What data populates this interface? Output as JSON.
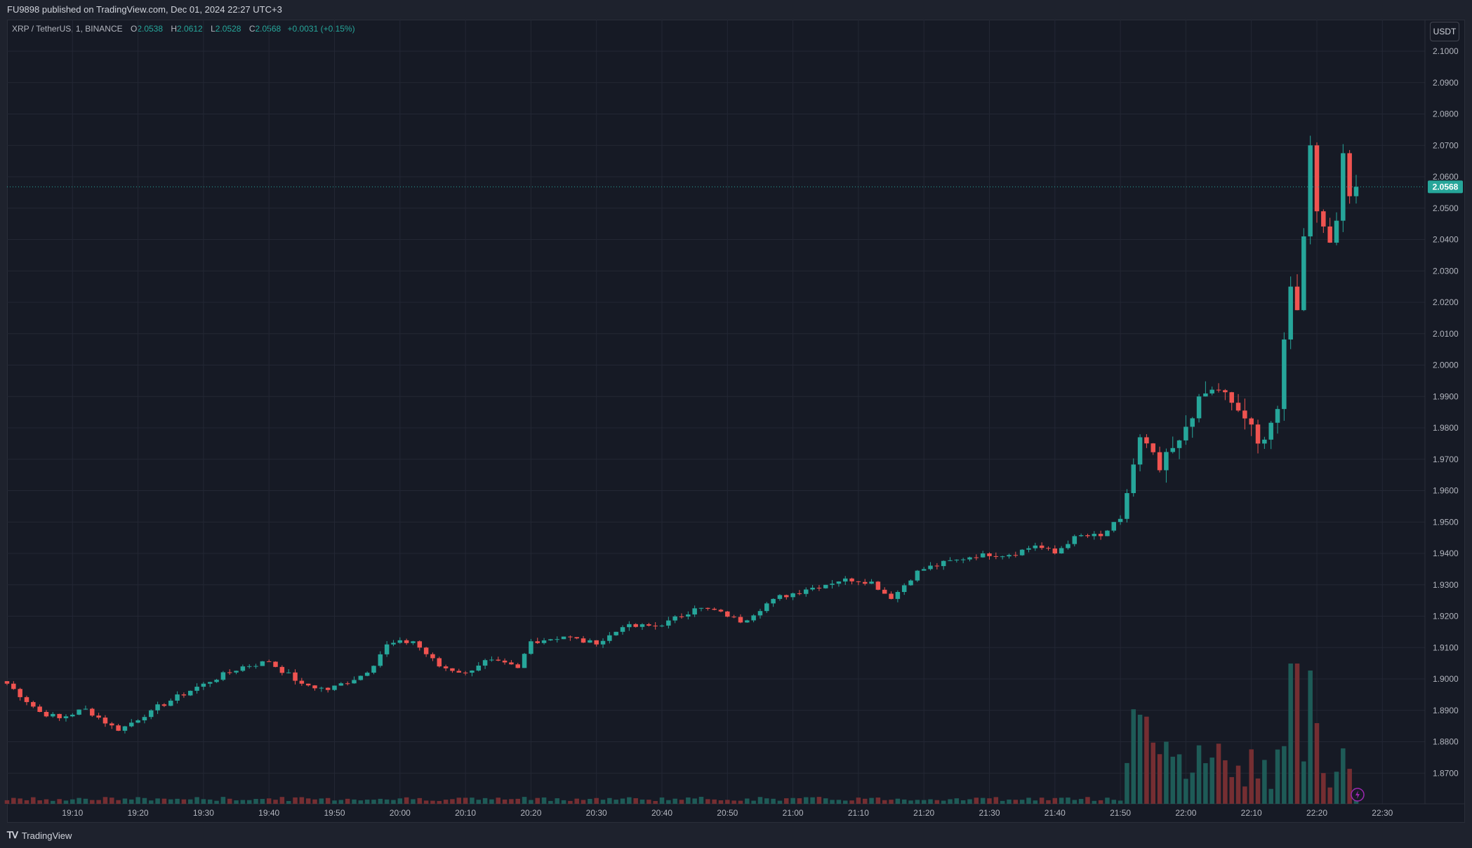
{
  "header": {
    "published_line": "FU9898 published on TradingView.com, Dec 01, 2024 22:27 UTC+3"
  },
  "legend": {
    "symbol": "XRP / TetherUS, 1, BINANCE",
    "open_label": "O",
    "open_value": "2.0538",
    "high_label": "H",
    "high_value": "2.0612",
    "low_label": "L",
    "low_value": "2.0528",
    "close_label": "C",
    "close_value": "2.0568",
    "change": "+0.0031 (+0.15%)"
  },
  "currency_button": "USDT",
  "footer": {
    "brand": "TradingView"
  },
  "colors": {
    "up": "#26a69a",
    "down": "#ef5350",
    "background": "#161a25",
    "grid": "#232734"
  },
  "chart_data": {
    "type": "candlestick",
    "instrument": "XRP / TetherUS",
    "interval_minutes": 1,
    "exchange": "BINANCE",
    "y_axis_labels": [
      "2.1000",
      "2.0900",
      "2.0800",
      "2.0700",
      "2.0600",
      "2.0500",
      "2.0400",
      "2.0300",
      "2.0200",
      "2.0100",
      "2.0000",
      "1.9900",
      "1.9800",
      "1.9700",
      "1.9600",
      "1.9500",
      "1.9400",
      "1.9300",
      "1.9200",
      "1.9100",
      "1.9000",
      "1.8900",
      "1.8800",
      "1.8700"
    ],
    "y_range": [
      1.862,
      2.104
    ],
    "x_axis_labels": [
      "19:10",
      "19:20",
      "19:30",
      "19:40",
      "19:50",
      "20:00",
      "20:10",
      "20:20",
      "20:30",
      "20:40",
      "20:50",
      "21:00",
      "21:10",
      "21:20",
      "21:30",
      "21:40",
      "21:50",
      "22:00",
      "22:10",
      "22:20",
      "22:30"
    ],
    "x_range_minutes": [
      "19:00",
      "22:35"
    ],
    "last_price": "2.0568",
    "close_path_anchors": [
      [
        "19:00",
        1.8985
      ],
      [
        "19:05",
        1.8895
      ],
      [
        "19:08",
        1.8875
      ],
      [
        "19:12",
        1.8905
      ],
      [
        "19:17",
        1.8835
      ],
      [
        "19:22",
        1.89
      ],
      [
        "19:30",
        1.8985
      ],
      [
        "19:36",
        1.904
      ],
      [
        "19:40",
        1.9055
      ],
      [
        "19:45",
        1.8985
      ],
      [
        "19:49",
        1.8965
      ],
      [
        "19:55",
        1.902
      ],
      [
        "19:58",
        1.911
      ],
      [
        "20:02",
        1.912
      ],
      [
        "20:06",
        1.904
      ],
      [
        "20:10",
        1.902
      ],
      [
        "20:13",
        1.906
      ],
      [
        "20:18",
        1.9035
      ],
      [
        "20:20",
        1.912
      ],
      [
        "20:25",
        1.9135
      ],
      [
        "20:30",
        1.911
      ],
      [
        "20:34",
        1.9165
      ],
      [
        "20:40",
        1.917
      ],
      [
        "20:45",
        1.9225
      ],
      [
        "20:49",
        1.9215
      ],
      [
        "20:52",
        1.918
      ],
      [
        "20:57",
        1.9255
      ],
      [
        "21:02",
        1.9285
      ],
      [
        "21:08",
        1.932
      ],
      [
        "21:12",
        1.931
      ],
      [
        "21:15",
        1.9255
      ],
      [
        "21:19",
        1.9345
      ],
      [
        "21:25",
        1.938
      ],
      [
        "21:29",
        1.94
      ],
      [
        "21:33",
        1.9395
      ],
      [
        "21:37",
        1.9425
      ],
      [
        "21:40",
        1.94
      ],
      [
        "21:43",
        1.9455
      ],
      [
        "21:47",
        1.9455
      ],
      [
        "21:50",
        1.951
      ],
      [
        "21:53",
        1.977
      ],
      [
        "21:56",
        1.9665
      ],
      [
        "21:59",
        1.976
      ],
      [
        "22:02",
        1.99
      ],
      [
        "22:05",
        1.992
      ],
      [
        "22:07",
        1.988
      ],
      [
        "22:09",
        1.983
      ],
      [
        "22:11",
        1.975
      ],
      [
        "22:14",
        1.986
      ],
      [
        "22:16",
        2.025
      ],
      [
        "22:17",
        2.0175
      ],
      [
        "22:18",
        2.041
      ],
      [
        "22:19",
        2.07
      ],
      [
        "22:20",
        2.049
      ],
      [
        "22:22",
        2.039
      ],
      [
        "22:23",
        2.046
      ],
      [
        "22:24",
        2.0675
      ],
      [
        "22:25",
        2.0538
      ],
      [
        "22:26",
        2.0568
      ]
    ],
    "volume_note": "volume bars shown beneath price; large spikes near 21:53 and 22:16-22:20"
  }
}
